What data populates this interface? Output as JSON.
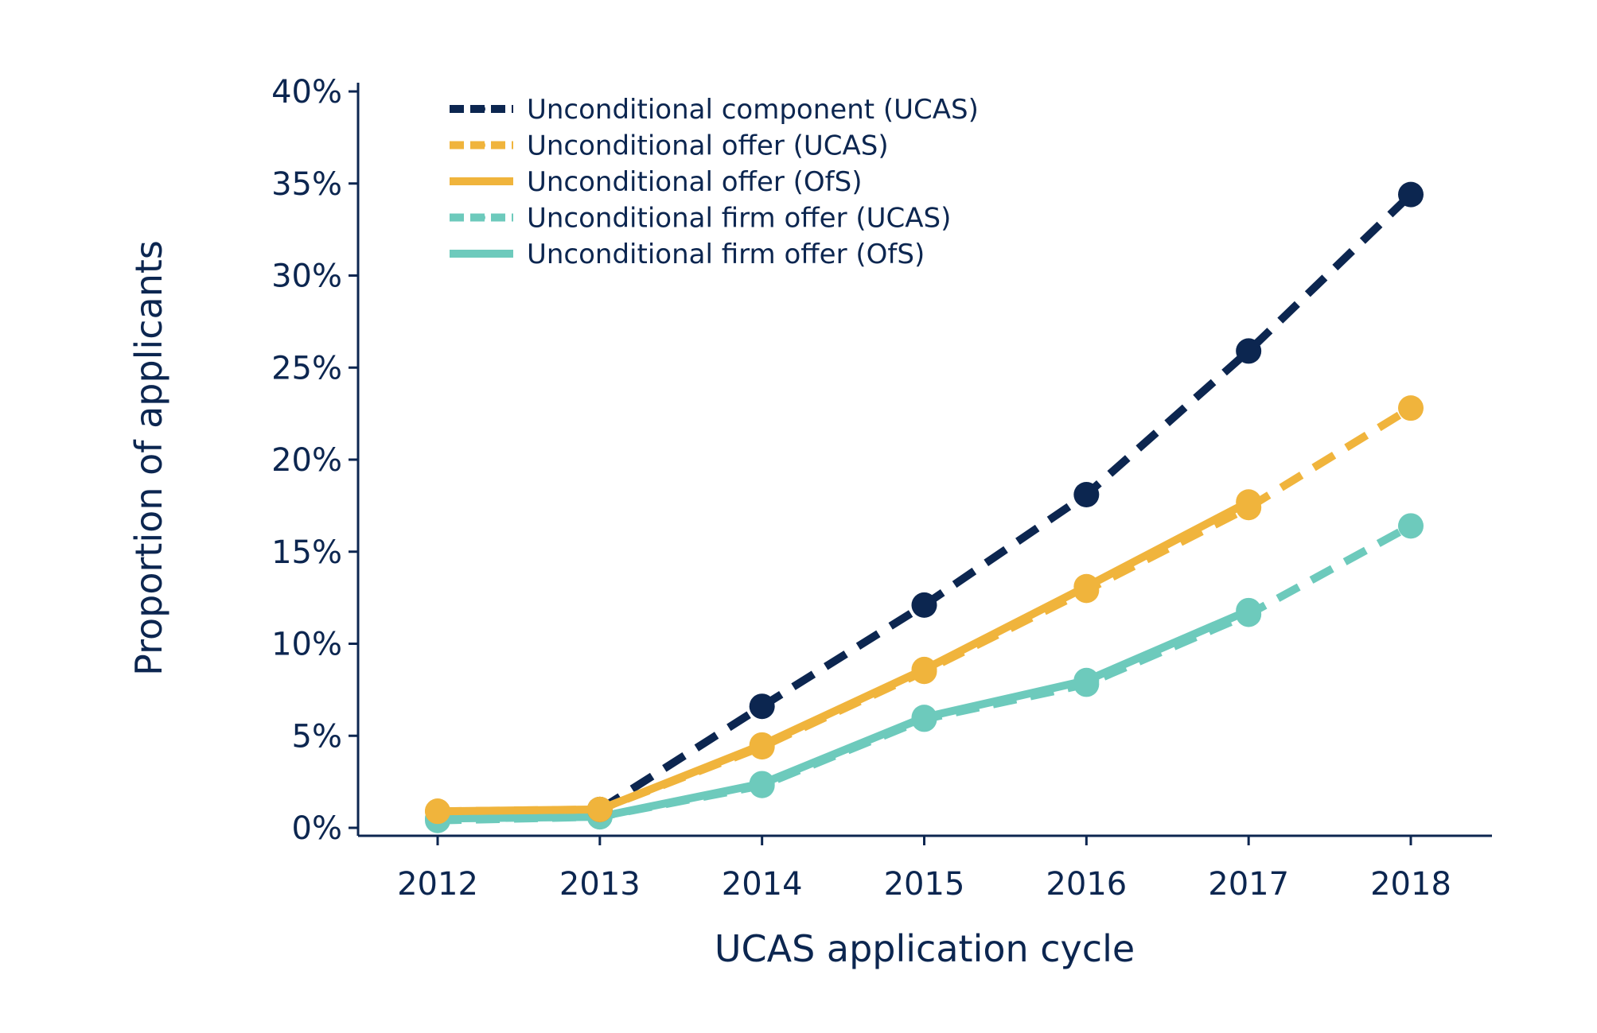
{
  "chart_data": {
    "type": "line",
    "title": "",
    "xlabel": "UCAS application cycle",
    "ylabel": "Proportion of applicants",
    "x": [
      "2012",
      "2013",
      "2014",
      "2015",
      "2016",
      "2017",
      "2018"
    ],
    "ylim": [
      0,
      40
    ],
    "yticks": [
      0,
      5,
      10,
      15,
      20,
      25,
      30,
      35,
      40
    ],
    "ytick_labels": [
      "0%",
      "5%",
      "10%",
      "15%",
      "20%",
      "25%",
      "30%",
      "35%",
      "40%"
    ],
    "grid": false,
    "legend_position": "top-left",
    "series": [
      {
        "name": "Unconditional component (UCAS)",
        "color": "#0c2650",
        "dashed": true,
        "values": [
          null,
          1.0,
          6.6,
          12.1,
          18.1,
          25.9,
          34.4
        ]
      },
      {
        "name": "Unconditional offer (UCAS)",
        "color": "#f0b43c",
        "dashed": true,
        "values": [
          0.9,
          1.0,
          4.4,
          8.5,
          12.9,
          17.4,
          22.8
        ]
      },
      {
        "name": "Unconditional offer (OfS)",
        "color": "#f0b43c",
        "dashed": false,
        "values": [
          0.9,
          1.0,
          4.5,
          8.6,
          13.1,
          17.7,
          null
        ]
      },
      {
        "name": "Unconditional firm offer (UCAS)",
        "color": "#6dcabc",
        "dashed": true,
        "values": [
          0.4,
          0.6,
          2.3,
          5.9,
          7.8,
          11.6,
          16.4
        ]
      },
      {
        "name": "Unconditional firm offer (OfS)",
        "color": "#6dcabc",
        "dashed": false,
        "values": [
          0.5,
          0.6,
          2.4,
          6.0,
          8.0,
          11.8,
          null
        ]
      }
    ]
  }
}
